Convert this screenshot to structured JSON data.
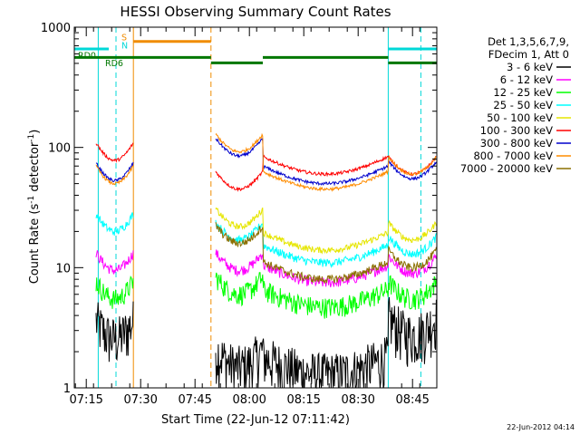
{
  "chart_data": {
    "type": "line",
    "title": "HESSI Observing Summary Count Rates",
    "xlabel": "Start Time (22-Jun-12 07:11:42)",
    "ylabel_main": "Count Rate (s",
    "ylabel_sup1": "-1",
    "ylabel_mid": " detector",
    "ylabel_sup2": "-1",
    "ylabel_end": ")",
    "y_scale": "log",
    "ylim": [
      1,
      1000
    ],
    "xlim_minutes": [
      0,
      100
    ],
    "y_ticks": [
      {
        "value": 1,
        "label": "1"
      },
      {
        "value": 10,
        "label": "10"
      },
      {
        "value": 100,
        "label": "100"
      },
      {
        "value": 1000,
        "label": "1000"
      }
    ],
    "x_ticks": [
      {
        "t": 3.3,
        "label": "07:15"
      },
      {
        "t": 18.3,
        "label": "07:30"
      },
      {
        "t": 33.3,
        "label": "07:45"
      },
      {
        "t": 48.3,
        "label": "08:00"
      },
      {
        "t": 63.3,
        "label": "08:15"
      },
      {
        "t": 78.3,
        "label": "08:30"
      },
      {
        "t": 93.3,
        "label": "08:45"
      }
    ],
    "vertical_markers": [
      {
        "t": 6.6,
        "style": "solid",
        "color": "#00d8d8"
      },
      {
        "t": 11.5,
        "style": "dashed",
        "color": "#00d8d8"
      },
      {
        "t": 16.3,
        "style": "solid",
        "color": "#f08c00"
      },
      {
        "t": 37.7,
        "style": "dashed",
        "color": "#f08c00"
      },
      {
        "t": 86.6,
        "style": "solid",
        "color": "#00d8d8"
      },
      {
        "t": 95.6,
        "style": "dashed",
        "color": "#00d8d8"
      }
    ],
    "state_bars": [
      {
        "t0": 0,
        "t1": 9.5,
        "level": 660,
        "color": "#00d8d8"
      },
      {
        "t0": 16.3,
        "t1": 37.7,
        "level": 760,
        "color": "#f08c00"
      },
      {
        "t0": 86.6,
        "t1": 100,
        "level": 660,
        "color": "#00d8d8"
      },
      {
        "t0": 0,
        "t1": 37.7,
        "level": 560,
        "color": "#007700"
      },
      {
        "t0": 37.7,
        "t1": 52,
        "level": 505,
        "color": "#007700"
      },
      {
        "t0": 52,
        "t1": 86.6,
        "level": 560,
        "color": "#007700"
      },
      {
        "t0": 86.6,
        "t1": 100,
        "level": 505,
        "color": "#007700"
      }
    ],
    "state_labels": [
      {
        "text": "RD0",
        "color": "#007700",
        "t": 1.0,
        "level": 580
      },
      {
        "text": "RD6",
        "color": "#007700",
        "t": 8.5,
        "level": 500
      },
      {
        "text": "S",
        "color": "#f08c00",
        "t": 13.0,
        "level": 820
      },
      {
        "text": "N",
        "color": "#00d8d8",
        "t": 13.0,
        "level": 700
      }
    ],
    "segments": [
      {
        "t0": 6.0,
        "t1": 16.3
      },
      {
        "t0": 39.0,
        "t1": 100
      }
    ],
    "legend_header": [
      "Det 1,3,5,6,7,9,",
      "FDecim 1, Att 0"
    ],
    "series": [
      {
        "name": "3 - 6 keV",
        "color": "#000000",
        "base": [
          2.6,
          1.5,
          1.3,
          2.8
        ],
        "noise": 0.5,
        "rise": 0.3
      },
      {
        "name": "6 - 12 keV",
        "color": "#ff00ff",
        "base": [
          9.5,
          9.5,
          7.5,
          9.0
        ],
        "noise": 0.1,
        "rise": 0.15
      },
      {
        "name": "12 - 25 keV",
        "color": "#00ff00",
        "base": [
          5.5,
          6.0,
          4.7,
          5.5
        ],
        "noise": 0.2,
        "rise": 0.2
      },
      {
        "name": "25 - 50 keV",
        "color": "#00ffff",
        "base": [
          20,
          17,
          11,
          13
        ],
        "noise": 0.08,
        "rise": 0.2
      },
      {
        "name": "50 - 100 keV",
        "color": "#e6e600",
        "base": [
          0,
          22,
          14,
          17
        ],
        "noise": 0.06,
        "rise": 0.2
      },
      {
        "name": "100 - 300 keV",
        "color": "#ff0000",
        "base": [
          78,
          45,
          60,
          60
        ],
        "noise": 0.03,
        "rise": 0.25
      },
      {
        "name": "300 - 800 keV",
        "color": "#0000cc",
        "base": [
          53,
          85,
          50,
          55
        ],
        "noise": 0.03,
        "rise": 0.25
      },
      {
        "name": "800 - 7000 keV",
        "color": "#ff8c00",
        "base": [
          50,
          92,
          45,
          60
        ],
        "noise": 0.03,
        "rise": 0.25
      },
      {
        "name": "7000 - 20000 keV",
        "color": "#8b6f00",
        "base": [
          0,
          16,
          8,
          10
        ],
        "noise": 0.08,
        "rise": 0.2
      }
    ],
    "legend_placement": "right"
  },
  "timestamp": "22-Jun-2012 04:14"
}
